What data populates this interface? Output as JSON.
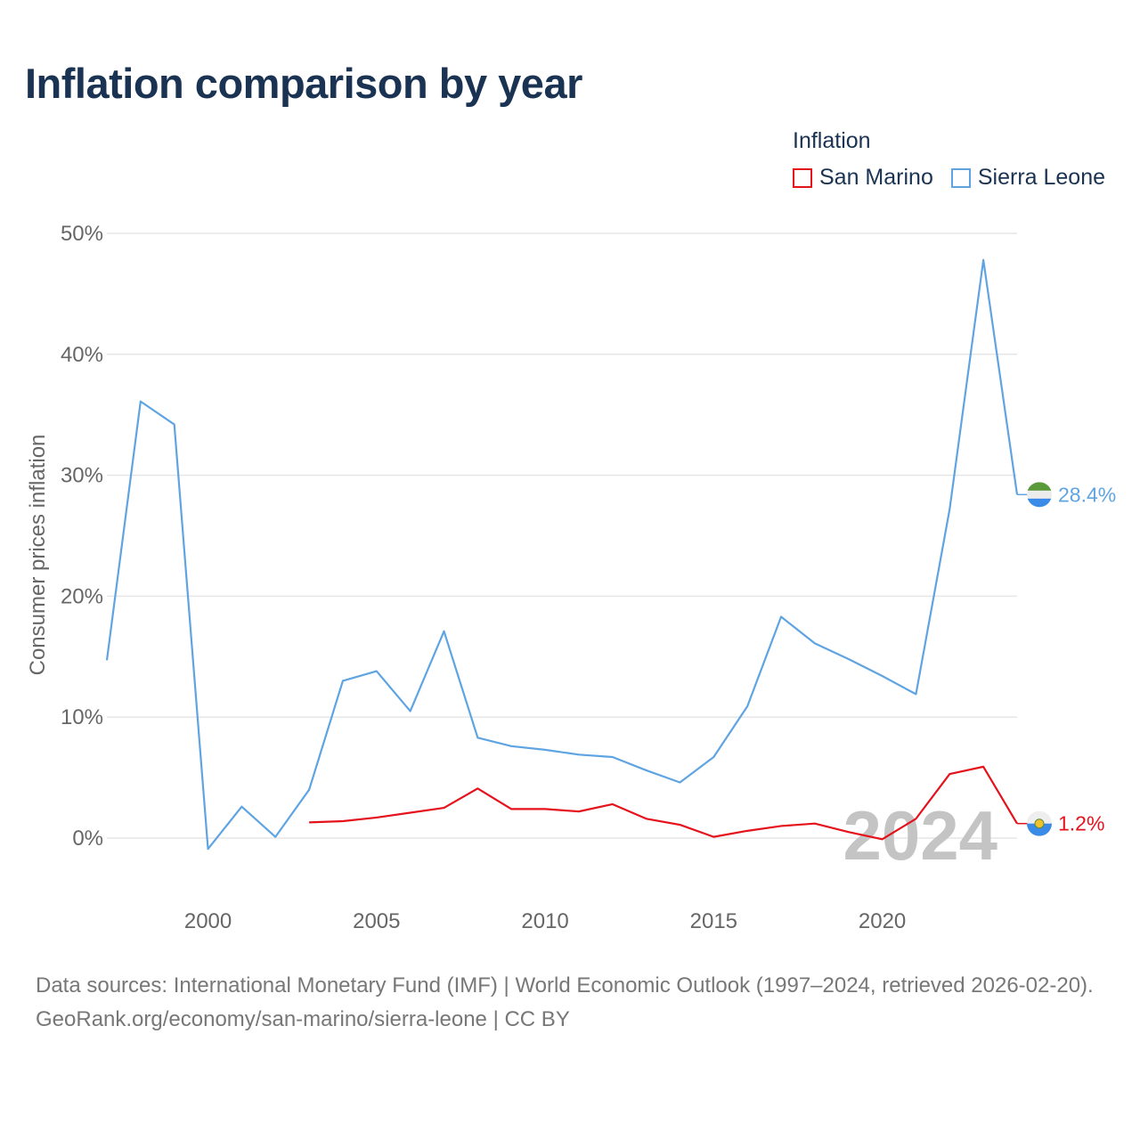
{
  "header": {
    "title": "Inflation comparison by year"
  },
  "legend": {
    "title": "Inflation",
    "items": [
      {
        "label": "San Marino",
        "color": "#e5121c"
      },
      {
        "label": "Sierra Leone",
        "color": "#5fa4e2"
      }
    ]
  },
  "chart_data": {
    "type": "line",
    "title": "Inflation comparison by year",
    "xlabel": "",
    "ylabel": "Consumer prices inflation",
    "xlim": [
      1997,
      2024
    ],
    "ylim": [
      -5,
      50
    ],
    "x_ticks": [
      2000,
      2005,
      2010,
      2015,
      2020
    ],
    "y_ticks": [
      0,
      10,
      20,
      30,
      40,
      50
    ],
    "y_tick_labels": [
      "0%",
      "10%",
      "20%",
      "30%",
      "40%",
      "50%"
    ],
    "year_watermark": "2024",
    "series": [
      {
        "name": "Sierra Leone",
        "color": "#5fa4e2",
        "x": [
          1997,
          1998,
          1999,
          2000,
          2001,
          2002,
          2003,
          2004,
          2005,
          2006,
          2007,
          2008,
          2009,
          2010,
          2011,
          2012,
          2013,
          2014,
          2015,
          2016,
          2017,
          2018,
          2019,
          2020,
          2021,
          2022,
          2023,
          2024
        ],
        "values": [
          14.7,
          36.1,
          34.2,
          -0.9,
          2.6,
          0.1,
          4.0,
          13.0,
          13.8,
          10.5,
          17.1,
          8.3,
          7.6,
          7.3,
          6.9,
          6.7,
          5.6,
          4.6,
          6.7,
          10.9,
          18.3,
          16.1,
          14.8,
          13.4,
          11.9,
          27.2,
          47.8,
          28.4
        ],
        "end_label": "28.4%"
      },
      {
        "name": "San Marino",
        "color": "#e5121c",
        "x": [
          2003,
          2004,
          2005,
          2006,
          2007,
          2008,
          2009,
          2010,
          2011,
          2012,
          2013,
          2014,
          2015,
          2016,
          2017,
          2018,
          2019,
          2020,
          2021,
          2022,
          2023,
          2024
        ],
        "values": [
          1.3,
          1.4,
          1.7,
          2.1,
          2.5,
          4.1,
          2.4,
          2.4,
          2.2,
          2.8,
          1.6,
          1.1,
          0.1,
          0.6,
          1.0,
          1.2,
          0.5,
          -0.1,
          1.6,
          5.3,
          5.9,
          1.2
        ],
        "end_label": "1.2%"
      }
    ]
  },
  "footer": {
    "sources": "Data sources: International Monetary Fund (IMF) | World Economic Outlook (1997–2024, retrieved 2026-02-20).",
    "credit": "GeoRank.org/economy/san-marino/sierra-leone | CC BY"
  }
}
